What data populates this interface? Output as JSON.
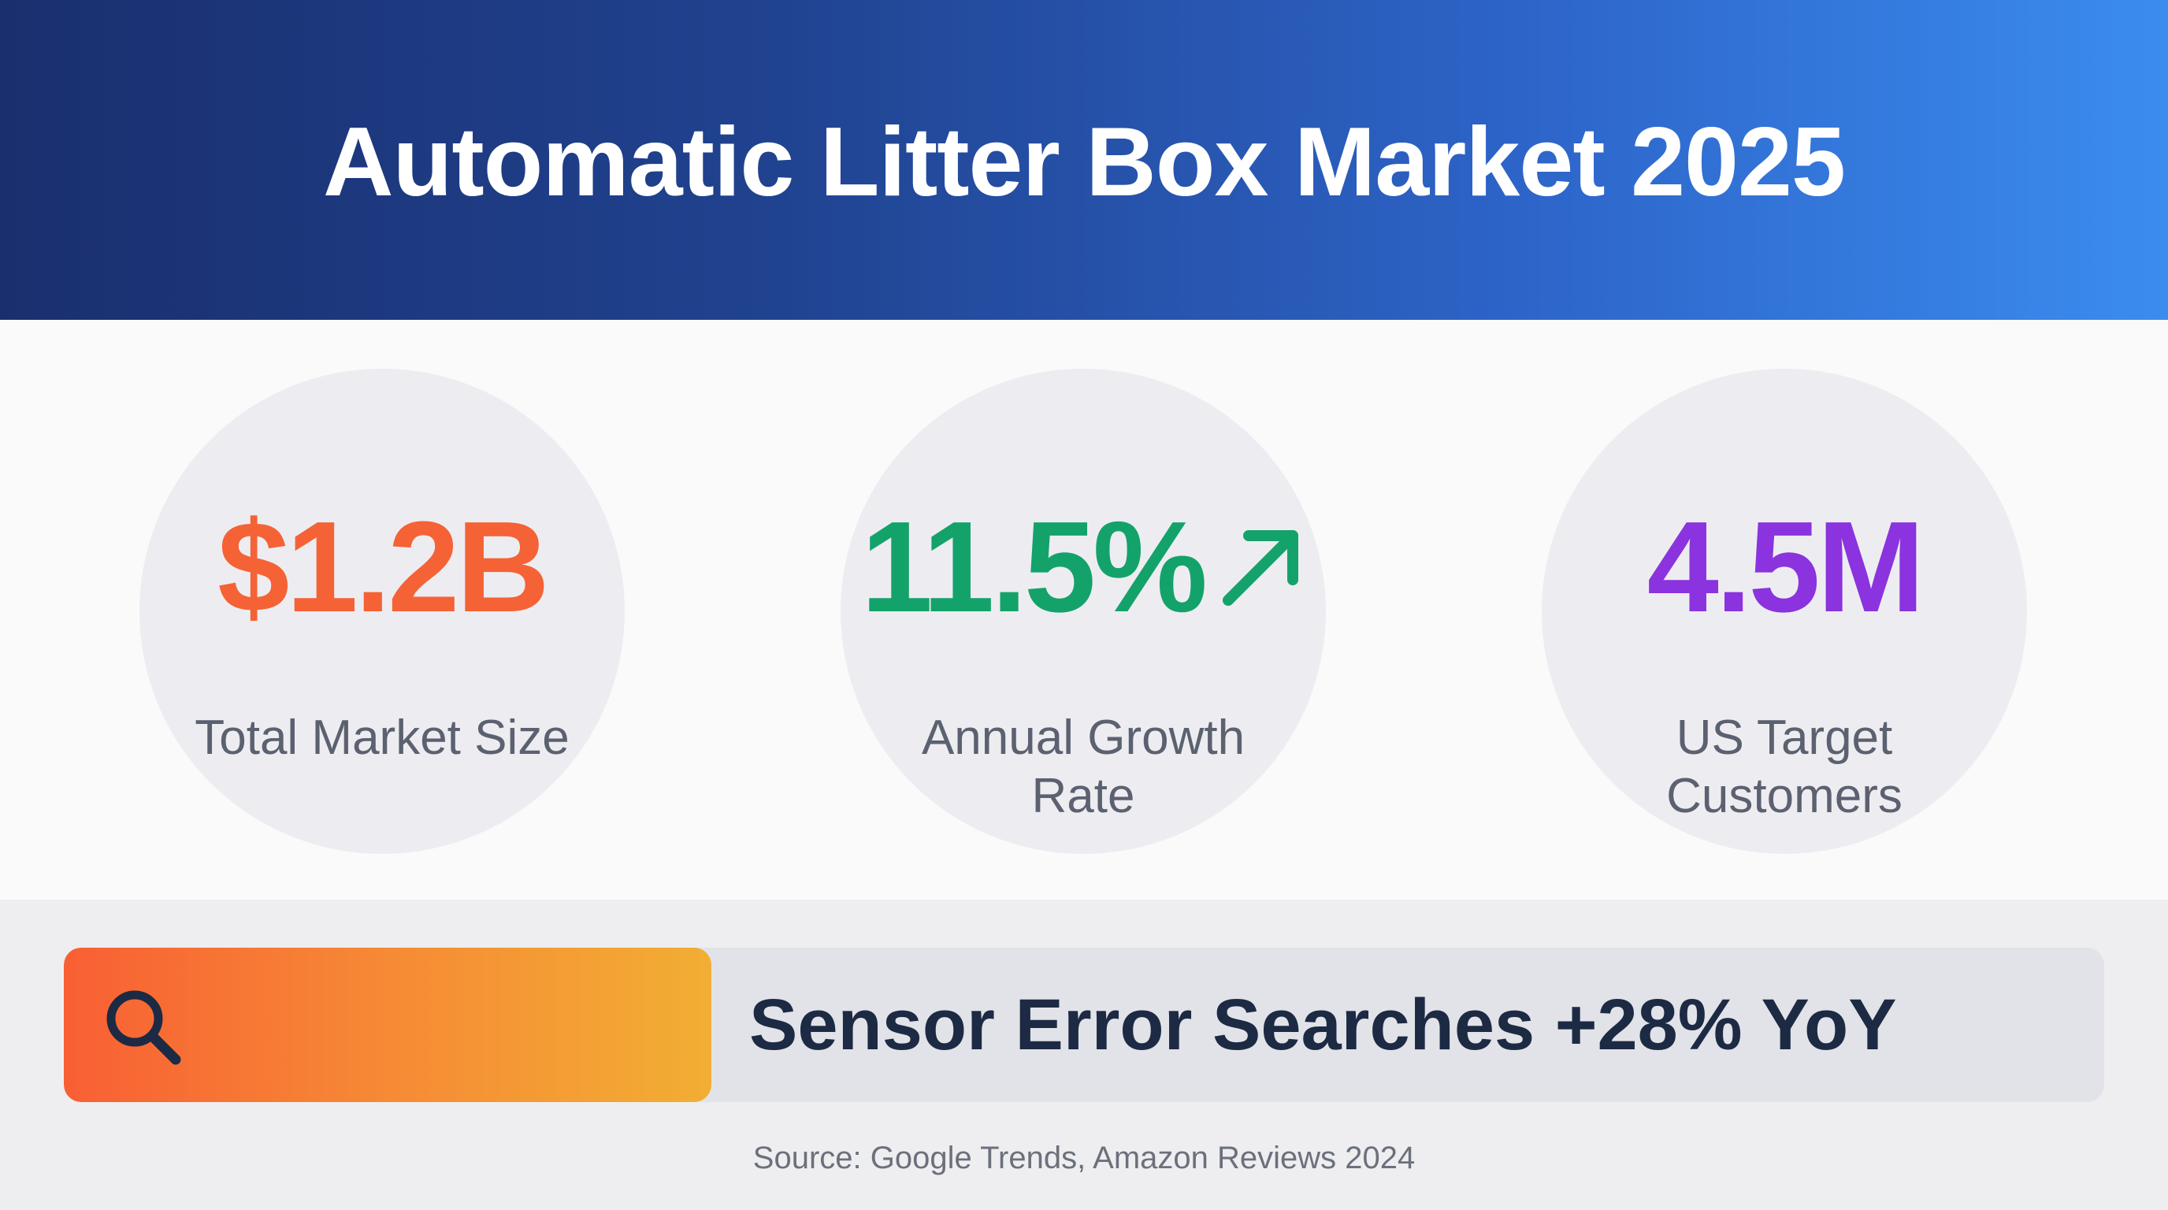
{
  "header": {
    "title": "Automatic Litter Box Market 2025"
  },
  "stats": [
    {
      "value": "$1.2B",
      "label": "Total Market Size",
      "color": "#f56236"
    },
    {
      "value": "11.5%",
      "label": "Annual Growth Rate",
      "color": "#14a26b",
      "icon": "arrow-up-right-icon"
    },
    {
      "value": "4.5M",
      "label": "US Target Customers",
      "color": "#8a33de"
    }
  ],
  "alert": {
    "icon": "search-icon",
    "text": "Sensor Error Searches +28% YoY",
    "accent_gradient": [
      "#f85f34",
      "#f2ae34"
    ]
  },
  "source": "Source: Google Trends, Amazon Reviews 2024",
  "colors": {
    "header_gradient": [
      "#1a2f6e",
      "#3b8cef"
    ],
    "circle_bg": "#ededf1",
    "label_text": "#5b6170",
    "alert_text": "#1d2a44"
  }
}
